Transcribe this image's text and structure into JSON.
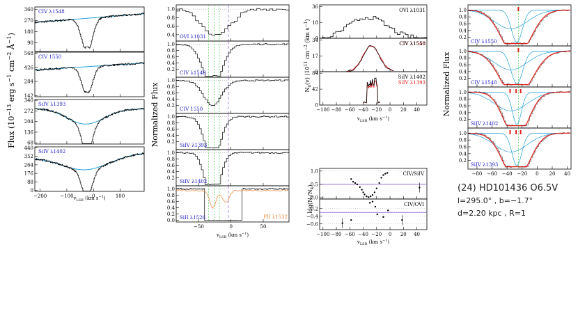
{
  "colors": {
    "data": "#000000",
    "fit": "#1e9fd6",
    "model": "#e0211d",
    "label": "#2020c8",
    "pii": "#f08030",
    "guide": "#33cc33",
    "dash": "#8c5bd6"
  },
  "info": {
    "line1": "(24) HD101436 O6.5V",
    "line2": "l=295.0° , b=−1.7°",
    "line3": "d=2.20 kpc , R=1"
  },
  "chart_data": [
    {
      "id": "A",
      "type": "line",
      "ylabel_main": "Flux",
      "ylabel_units": "(10",
      "ylabel_exp1": "−13",
      "ylabel_units2": "erg s",
      "ylabel_exp2": "−1",
      "ylabel_units3": "cm",
      "ylabel_exp3": "−2",
      "ylabel_units4": "Å",
      "ylabel_exp4": "−1",
      "ylabel_end": ")",
      "xlabel": "v",
      "xlabel_sub": "LSR",
      "xlabel_units": "(km s",
      "xlabel_exp": "−1",
      "xlabel_close": ")",
      "xlim": [
        -220,
        190
      ],
      "xticks": [
        "−200",
        "−100",
        "0",
        "100"
      ],
      "xtick_values": [
        -200,
        -100,
        0,
        100
      ],
      "panels": [
        {
          "label": "CIV λ1548",
          "ylim": [
            20,
            380
          ],
          "yticks": [
            "360",
            "270",
            "180",
            "90"
          ],
          "ytick_values": [
            360,
            270,
            180,
            90
          ],
          "cont": [
            255,
            325
          ],
          "depth": 240,
          "center": -25,
          "width": 20
        },
        {
          "label": "CIV 1550",
          "ylim": [
            130,
            580
          ],
          "yticks": [
            "568",
            "426",
            "284",
            "142"
          ],
          "ytick_values": [
            568,
            426,
            284,
            142
          ],
          "cont": [
            400,
            470
          ],
          "depth": 260,
          "center": -25,
          "width": 19
        },
        {
          "label": "SiIV λ1393",
          "ylim": [
            60,
            345
          ],
          "yticks": [
            "340",
            "272",
            "204",
            "136",
            "68"
          ],
          "ytick_values": [
            340,
            272,
            204,
            136,
            68
          ],
          "cont": [
            290,
            285
          ],
          "dip": [
            -30,
            100,
            70
          ],
          "depth": 180,
          "center": -25,
          "width": 18
        },
        {
          "label": "SiIV λ1402",
          "ylim": [
            -10,
            450
          ],
          "yticks": [
            "440",
            "352",
            "264",
            "176",
            "88",
            "0"
          ],
          "ytick_values": [
            440,
            352,
            264,
            176,
            88,
            0
          ],
          "cont": [
            340,
            390
          ],
          "dip": [
            -30,
            150,
            90
          ],
          "depth": 245,
          "center": -25,
          "width": 20
        }
      ]
    },
    {
      "id": "B",
      "type": "line",
      "ylabel": "Normalized Flux",
      "xlabel": "v",
      "xlabel_sub": "LSR",
      "xlabel_units": "(km s",
      "xlabel_exp": "−1",
      "xlabel_close": ")",
      "xlim": [
        -85,
        90
      ],
      "xticks": [
        "−50",
        "0",
        "50"
      ],
      "xtick_values": [
        -50,
        0,
        50
      ],
      "vlines": [
        -35,
        -25,
        -18
      ],
      "dash_v": -4,
      "panels": [
        {
          "label": "OVI λ1031",
          "ylim": [
            0.25,
            1.1
          ],
          "yticks": [
            "1.0",
            "0.8",
            "0.6",
            "0.4"
          ],
          "ytick_values": [
            1.0,
            0.8,
            0.6,
            0.4
          ]
        },
        {
          "label": "CIV λ1548",
          "ylim": [
            -0.05,
            1.1
          ],
          "yticks": [
            "1.0",
            "0.8",
            "0.6",
            "0.4",
            "0.2"
          ],
          "ytick_values": [
            1.0,
            0.8,
            0.6,
            0.4,
            0.2
          ]
        },
        {
          "label": "CIV 1550",
          "ylim": [
            -0.05,
            1.1
          ],
          "yticks": [
            "1.0",
            "0.8",
            "0.6",
            "0.4",
            "0.2"
          ],
          "ytick_values": [
            1.0,
            0.8,
            0.6,
            0.4,
            0.2
          ]
        },
        {
          "label": "SiIV λ1393",
          "ylim": [
            -0.05,
            1.1
          ],
          "yticks": [
            "1.0",
            "0.8",
            "0.6",
            "0.4",
            "0.2"
          ],
          "ytick_values": [
            1.0,
            0.8,
            0.6,
            0.4,
            0.2
          ]
        },
        {
          "label": "SiIV λ1402",
          "ylim": [
            -0.05,
            1.1
          ],
          "yticks": [
            "1.0",
            "0.8",
            "0.6",
            "0.4",
            "0.2"
          ],
          "ytick_values": [
            1.0,
            0.8,
            0.6,
            0.4,
            0.2
          ]
        },
        {
          "label": "SiII λ1526",
          "label2": "PII λ1532",
          "ylim": [
            -0.05,
            1.1
          ],
          "yticks": [
            "1.0",
            "0.8",
            "0.6",
            "0.4",
            "0.2",
            "0.0"
          ],
          "ytick_values": [
            1.0,
            0.8,
            0.6,
            0.4,
            0.2,
            0.0
          ]
        }
      ]
    },
    {
      "id": "C",
      "type": "line",
      "ylabel": "N",
      "ylabel_sub": "a",
      "ylabel_rest": "(v) (10",
      "ylabel_exp": "11",
      "ylabel_units": "cm",
      "ylabel_exp2": "−2",
      "ylabel_units2": "(km s",
      "ylabel_exp3": "−1",
      "ylabel_close": ")",
      "xlabel": "v",
      "xlabel_sub": "LSR",
      "xlabel_units": "(km s",
      "xlabel_exp": "−1",
      "xlabel_close": ")",
      "xlim": [
        -105,
        55
      ],
      "xticks": [
        "−100",
        "−80",
        "−60",
        "−40",
        "−20",
        "0",
        "20",
        "40"
      ],
      "xtick_values": [
        -100,
        -80,
        -60,
        -40,
        -20,
        0,
        20,
        40
      ],
      "panels": [
        {
          "label": "OVI λ1031",
          "ylim": [
            0,
            38
          ],
          "yticks": [
            "36",
            "18",
            "0"
          ],
          "ytick_values": [
            36,
            18,
            0
          ]
        },
        {
          "label": "CIV λ1550",
          "label2": "CIV λ1548",
          "ylim": [
            0,
            36
          ],
          "yticks": [
            "34",
            "17",
            "0"
          ],
          "ytick_values": [
            34,
            17,
            0
          ]
        },
        {
          "label": "SiIV λ1402",
          "label2": "SiIV λ1393",
          "ylim": [
            0,
            88
          ],
          "yticks": [
            "84",
            "42",
            "0"
          ],
          "ytick_values": [
            84,
            42,
            0
          ]
        }
      ]
    },
    {
      "id": "D",
      "type": "scatter",
      "ylabel": "log(N",
      "ylabel_sub1": "i",
      "ylabel_mid": "/N",
      "ylabel_sub2": "k",
      "ylabel_close": ")",
      "xlabel": "v",
      "xlabel_sub": "LSR",
      "xlabel_units": "(km s",
      "xlabel_exp": "−1",
      "xlabel_close": ")",
      "xlim": [
        -105,
        55
      ],
      "xticks": [
        "−100",
        "−80",
        "−60",
        "−40",
        "−20",
        "0",
        "20",
        "40"
      ],
      "xtick_values": [
        -100,
        -80,
        -60,
        -40,
        -20,
        0,
        20,
        40
      ],
      "panels": [
        {
          "label": "CIV/SiIV",
          "ylim": [
            -0.05,
            1.1
          ],
          "yticks": [
            "1.0",
            "0.5",
            "0.0"
          ],
          "ytick_values": [
            1.0,
            0.5,
            0.0
          ],
          "hline": 0.5,
          "points": [
            [
              -58,
              0.7
            ],
            [
              -55,
              0.6
            ],
            [
              -52,
              0.55
            ],
            [
              -49,
              0.5
            ],
            [
              -45,
              0.4
            ],
            [
              -42,
              0.3
            ],
            [
              -40,
              0.2
            ],
            [
              -38,
              0.12
            ],
            [
              -35,
              0.05
            ],
            [
              -32,
              0.02
            ],
            [
              -29,
              0.05
            ],
            [
              -26,
              0.1
            ],
            [
              -23,
              0.2
            ],
            [
              -20,
              0.35
            ],
            [
              -16,
              0.55
            ],
            [
              -13,
              0.75
            ],
            [
              -10,
              0.85
            ],
            [
              -7,
              0.9
            ],
            [
              -4,
              0.93
            ],
            [
              44,
              0.38
            ]
          ]
        },
        {
          "label": "CIV/OVI",
          "ylim": [
            -0.75,
            0.05
          ],
          "yticks": [
            "−0.2",
            "−0.4",
            "−0.6"
          ],
          "ytick_values": [
            -0.2,
            -0.4,
            -0.6
          ],
          "hline": -0.3,
          "points": [
            [
              -71,
              -0.58
            ],
            [
              -58,
              -0.5
            ],
            [
              -30,
              -0.05
            ],
            [
              -26,
              -0.02
            ],
            [
              -22,
              -0.15
            ],
            [
              -19,
              -0.35
            ],
            [
              -10,
              -0.42
            ],
            [
              -3,
              -0.25
            ],
            [
              18,
              -0.5
            ]
          ]
        }
      ]
    },
    {
      "id": "E",
      "type": "line",
      "ylabel": "Normalized Flux",
      "xlim": [
        -92,
        45
      ],
      "xticks": [
        "−80",
        "−60",
        "−40",
        "−20",
        "0",
        "20",
        "40"
      ],
      "xtick_values": [
        -80,
        -60,
        -40,
        -20,
        0,
        20,
        40
      ],
      "panels": [
        {
          "label": "CIV λ1550",
          "ylim": [
            -0.05,
            1.15
          ],
          "yticks": [
            "1.0",
            "0.8",
            "0.6",
            "0.4",
            "0.2"
          ],
          "ytick_values": [
            1.0,
            0.8,
            0.6,
            0.4,
            0.2
          ],
          "marks": [
            -25
          ]
        },
        {
          "label": "CIV λ1548",
          "ylim": [
            -0.05,
            1.15
          ],
          "yticks": [
            "1.0",
            "0.8",
            "0.6",
            "0.4",
            "0.2"
          ],
          "ytick_values": [
            1.0,
            0.8,
            0.6,
            0.4,
            0.2
          ],
          "marks": [
            -25
          ]
        },
        {
          "label": "SiIV λ1402",
          "ylim": [
            -0.05,
            1.15
          ],
          "yticks": [
            "1.0",
            "0.8",
            "0.6",
            "0.4",
            "0.2"
          ],
          "ytick_values": [
            1.0,
            0.8,
            0.6,
            0.4,
            0.2
          ],
          "marks": [
            -36,
            -28,
            -22
          ]
        },
        {
          "label": "SiIV λ1393",
          "ylim": [
            -0.05,
            1.15
          ],
          "yticks": [
            "1.0",
            "0.8",
            "0.6",
            "0.4",
            "0.2"
          ],
          "ytick_values": [
            1.0,
            0.8,
            0.6,
            0.4,
            0.2
          ],
          "marks": [
            -36,
            -28,
            -22
          ]
        }
      ]
    }
  ]
}
